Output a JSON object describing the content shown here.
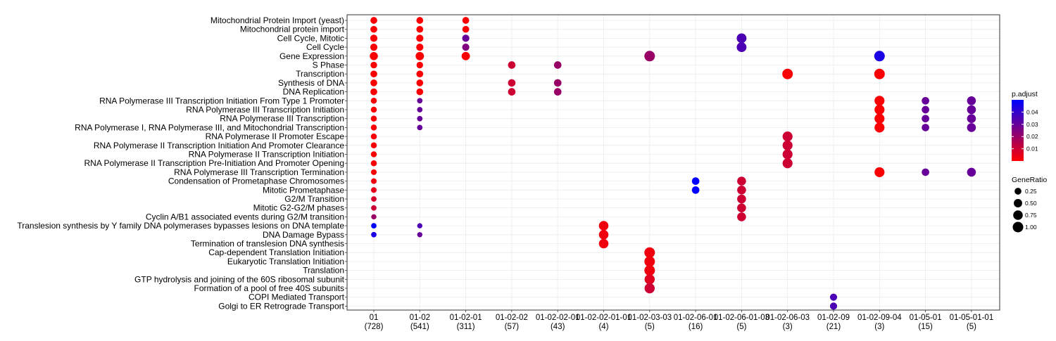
{
  "chart_data": {
    "type": "scatter",
    "title": "",
    "xlabel": "",
    "ylabel": "",
    "grid": true,
    "x_categories": [
      {
        "label": "01",
        "count": "(728)"
      },
      {
        "label": "01-02",
        "count": "(541)"
      },
      {
        "label": "01-02-01",
        "count": "(311)"
      },
      {
        "label": "01-02-02",
        "count": "(57)"
      },
      {
        "label": "01-02-02-01",
        "count": "(43)"
      },
      {
        "label": "01-02-02-01-01",
        "count": "(4)"
      },
      {
        "label": "01-02-03-03",
        "count": "(5)"
      },
      {
        "label": "01-02-06-01",
        "count": "(16)"
      },
      {
        "label": "01-02-06-01-03",
        "count": "(5)"
      },
      {
        "label": "01-02-06-03",
        "count": "(3)"
      },
      {
        "label": "01-02-09",
        "count": "(21)"
      },
      {
        "label": "01-02-09-04",
        "count": "(3)"
      },
      {
        "label": "01-05-01",
        "count": "(15)"
      },
      {
        "label": "01-05-01-01",
        "count": "(5)"
      }
    ],
    "y_categories": [
      "Mitochondrial Protein Import (yeast)",
      "Mitochondrial protein import",
      "Cell Cycle, Mitotic",
      "Cell Cycle",
      "Gene Expression",
      "S Phase",
      "Transcription",
      "Synthesis of DNA",
      "DNA Replication",
      "RNA Polymerase III Transcription Initiation From Type 1 Promoter",
      "RNA Polymerase III Transcription Initiation",
      "RNA Polymerase III Transcription",
      "RNA Polymerase I, RNA Polymerase III, and Mitochondrial Transcription",
      "RNA Polymerase II Promoter Escape",
      "RNA Polymerase II Transcription Initiation And Promoter Clearance",
      "RNA Polymerase II Transcription Initiation",
      "RNA Polymerase II Transcription Pre-Initiation And Promoter Opening",
      "RNA Polymerase III Transcription Termination",
      "Condensation of Prometaphase Chromosomes",
      "Mitotic Prometaphase",
      "G2/M Transition",
      "Mitotic G2-G2/M phases",
      "Cyclin A/B1 associated events during G2/M transition",
      "Translesion synthesis by Y family DNA polymerases bypasses lesions on DNA template",
      "DNA Damage Bypass",
      "Termination of translesion DNA synthesis",
      "Cap-dependent Translation Initiation",
      "Eukaryotic Translation Initiation",
      "Translation",
      "GTP hydrolysis and joining of the 60S ribosomal subunit",
      "Formation of a pool of free 40S subunits",
      "COPI Mediated Transport",
      "Golgi to ER Retrograde Transport"
    ],
    "points": [
      {
        "x": 0,
        "y": 0,
        "ratio": 0.25,
        "padj": 0.001
      },
      {
        "x": 0,
        "y": 1,
        "ratio": 0.25,
        "padj": 0.001
      },
      {
        "x": 0,
        "y": 2,
        "ratio": 0.3,
        "padj": 0.001
      },
      {
        "x": 0,
        "y": 3,
        "ratio": 0.3,
        "padj": 0.001
      },
      {
        "x": 0,
        "y": 4,
        "ratio": 0.45,
        "padj": 0.001
      },
      {
        "x": 0,
        "y": 5,
        "ratio": 0.22,
        "padj": 0.001
      },
      {
        "x": 0,
        "y": 6,
        "ratio": 0.25,
        "padj": 0.001
      },
      {
        "x": 0,
        "y": 7,
        "ratio": 0.25,
        "padj": 0.001
      },
      {
        "x": 0,
        "y": 8,
        "ratio": 0.25,
        "padj": 0.001
      },
      {
        "x": 0,
        "y": 9,
        "ratio": 0.15,
        "padj": 0.001
      },
      {
        "x": 0,
        "y": 10,
        "ratio": 0.15,
        "padj": 0.001
      },
      {
        "x": 0,
        "y": 11,
        "ratio": 0.15,
        "padj": 0.001
      },
      {
        "x": 0,
        "y": 12,
        "ratio": 0.15,
        "padj": 0.001
      },
      {
        "x": 0,
        "y": 13,
        "ratio": 0.15,
        "padj": 0.001
      },
      {
        "x": 0,
        "y": 14,
        "ratio": 0.15,
        "padj": 0.001
      },
      {
        "x": 0,
        "y": 15,
        "ratio": 0.15,
        "padj": 0.001
      },
      {
        "x": 0,
        "y": 16,
        "ratio": 0.15,
        "padj": 0.001
      },
      {
        "x": 0,
        "y": 17,
        "ratio": 0.12,
        "padj": 0.001
      },
      {
        "x": 0,
        "y": 18,
        "ratio": 0.12,
        "padj": 0.003
      },
      {
        "x": 0,
        "y": 19,
        "ratio": 0.12,
        "padj": 0.005
      },
      {
        "x": 0,
        "y": 20,
        "ratio": 0.1,
        "padj": 0.008
      },
      {
        "x": 0,
        "y": 21,
        "ratio": 0.1,
        "padj": 0.01
      },
      {
        "x": 0,
        "y": 22,
        "ratio": 0.08,
        "padj": 0.02
      },
      {
        "x": 0,
        "y": 23,
        "ratio": 0.1,
        "padj": 0.05
      },
      {
        "x": 0,
        "y": 24,
        "ratio": 0.1,
        "padj": 0.045
      },
      {
        "x": 1,
        "y": 0,
        "ratio": 0.25,
        "padj": 0.001
      },
      {
        "x": 1,
        "y": 1,
        "ratio": 0.25,
        "padj": 0.001
      },
      {
        "x": 1,
        "y": 2,
        "ratio": 0.3,
        "padj": 0.001
      },
      {
        "x": 1,
        "y": 3,
        "ratio": 0.3,
        "padj": 0.001
      },
      {
        "x": 1,
        "y": 4,
        "ratio": 0.5,
        "padj": 0.001
      },
      {
        "x": 1,
        "y": 5,
        "ratio": 0.22,
        "padj": 0.001
      },
      {
        "x": 1,
        "y": 6,
        "ratio": 0.25,
        "padj": 0.001
      },
      {
        "x": 1,
        "y": 7,
        "ratio": 0.25,
        "padj": 0.001
      },
      {
        "x": 1,
        "y": 8,
        "ratio": 0.25,
        "padj": 0.001
      },
      {
        "x": 1,
        "y": 9,
        "ratio": 0.1,
        "padj": 0.03
      },
      {
        "x": 1,
        "y": 10,
        "ratio": 0.1,
        "padj": 0.03
      },
      {
        "x": 1,
        "y": 11,
        "ratio": 0.1,
        "padj": 0.03
      },
      {
        "x": 1,
        "y": 12,
        "ratio": 0.1,
        "padj": 0.03
      },
      {
        "x": 1,
        "y": 23,
        "ratio": 0.08,
        "padj": 0.035
      },
      {
        "x": 1,
        "y": 24,
        "ratio": 0.08,
        "padj": 0.03
      },
      {
        "x": 2,
        "y": 0,
        "ratio": 0.25,
        "padj": 0.001
      },
      {
        "x": 2,
        "y": 1,
        "ratio": 0.25,
        "padj": 0.001
      },
      {
        "x": 2,
        "y": 2,
        "ratio": 0.3,
        "padj": 0.03
      },
      {
        "x": 2,
        "y": 3,
        "ratio": 0.3,
        "padj": 0.025
      },
      {
        "x": 2,
        "y": 4,
        "ratio": 0.5,
        "padj": 0.001
      },
      {
        "x": 3,
        "y": 5,
        "ratio": 0.35,
        "padj": 0.01
      },
      {
        "x": 3,
        "y": 7,
        "ratio": 0.35,
        "padj": 0.01
      },
      {
        "x": 3,
        "y": 8,
        "ratio": 0.35,
        "padj": 0.01
      },
      {
        "x": 4,
        "y": 5,
        "ratio": 0.35,
        "padj": 0.02
      },
      {
        "x": 4,
        "y": 7,
        "ratio": 0.35,
        "padj": 0.02
      },
      {
        "x": 4,
        "y": 8,
        "ratio": 0.35,
        "padj": 0.02
      },
      {
        "x": 5,
        "y": 23,
        "ratio": 0.75,
        "padj": 0.003
      },
      {
        "x": 5,
        "y": 24,
        "ratio": 0.75,
        "padj": 0.003
      },
      {
        "x": 5,
        "y": 25,
        "ratio": 0.75,
        "padj": 0.003
      },
      {
        "x": 6,
        "y": 4,
        "ratio": 1.0,
        "padj": 0.02
      },
      {
        "x": 6,
        "y": 26,
        "ratio": 1.0,
        "padj": 0.003
      },
      {
        "x": 6,
        "y": 27,
        "ratio": 1.0,
        "padj": 0.003
      },
      {
        "x": 6,
        "y": 28,
        "ratio": 1.0,
        "padj": 0.003
      },
      {
        "x": 6,
        "y": 29,
        "ratio": 0.9,
        "padj": 0.006
      },
      {
        "x": 6,
        "y": 30,
        "ratio": 0.9,
        "padj": 0.01
      },
      {
        "x": 7,
        "y": 18,
        "ratio": 0.35,
        "padj": 0.05
      },
      {
        "x": 7,
        "y": 19,
        "ratio": 0.35,
        "padj": 0.05
      },
      {
        "x": 8,
        "y": 2,
        "ratio": 0.8,
        "padj": 0.035
      },
      {
        "x": 8,
        "y": 3,
        "ratio": 0.8,
        "padj": 0.035
      },
      {
        "x": 8,
        "y": 18,
        "ratio": 0.6,
        "padj": 0.01
      },
      {
        "x": 8,
        "y": 19,
        "ratio": 0.6,
        "padj": 0.01
      },
      {
        "x": 8,
        "y": 20,
        "ratio": 0.6,
        "padj": 0.01
      },
      {
        "x": 8,
        "y": 21,
        "ratio": 0.6,
        "padj": 0.01
      },
      {
        "x": 8,
        "y": 22,
        "ratio": 0.6,
        "padj": 0.01
      },
      {
        "x": 9,
        "y": 6,
        "ratio": 1.0,
        "padj": 0.001
      },
      {
        "x": 9,
        "y": 13,
        "ratio": 0.85,
        "padj": 0.01
      },
      {
        "x": 9,
        "y": 14,
        "ratio": 0.85,
        "padj": 0.01
      },
      {
        "x": 9,
        "y": 15,
        "ratio": 0.85,
        "padj": 0.01
      },
      {
        "x": 9,
        "y": 16,
        "ratio": 0.85,
        "padj": 0.01
      },
      {
        "x": 10,
        "y": 31,
        "ratio": 0.3,
        "padj": 0.035
      },
      {
        "x": 10,
        "y": 32,
        "ratio": 0.3,
        "padj": 0.035
      },
      {
        "x": 11,
        "y": 4,
        "ratio": 1.0,
        "padj": 0.045
      },
      {
        "x": 11,
        "y": 6,
        "ratio": 1.0,
        "padj": 0.001
      },
      {
        "x": 11,
        "y": 9,
        "ratio": 0.85,
        "padj": 0.001
      },
      {
        "x": 11,
        "y": 10,
        "ratio": 0.85,
        "padj": 0.001
      },
      {
        "x": 11,
        "y": 11,
        "ratio": 0.85,
        "padj": 0.001
      },
      {
        "x": 11,
        "y": 12,
        "ratio": 0.85,
        "padj": 0.001
      },
      {
        "x": 11,
        "y": 17,
        "ratio": 0.85,
        "padj": 0.001
      },
      {
        "x": 12,
        "y": 9,
        "ratio": 0.35,
        "padj": 0.03
      },
      {
        "x": 12,
        "y": 10,
        "ratio": 0.35,
        "padj": 0.03
      },
      {
        "x": 12,
        "y": 11,
        "ratio": 0.35,
        "padj": 0.03
      },
      {
        "x": 12,
        "y": 12,
        "ratio": 0.35,
        "padj": 0.03
      },
      {
        "x": 12,
        "y": 17,
        "ratio": 0.35,
        "padj": 0.03
      },
      {
        "x": 13,
        "y": 9,
        "ratio": 0.6,
        "padj": 0.03
      },
      {
        "x": 13,
        "y": 10,
        "ratio": 0.6,
        "padj": 0.03
      },
      {
        "x": 13,
        "y": 11,
        "ratio": 0.6,
        "padj": 0.03
      },
      {
        "x": 13,
        "y": 12,
        "ratio": 0.6,
        "padj": 0.03
      },
      {
        "x": 13,
        "y": 17,
        "ratio": 0.6,
        "padj": 0.03
      }
    ],
    "legend_color": {
      "title": "p.adjust",
      "ticks": [
        0.01,
        0.02,
        0.03,
        0.04
      ],
      "tick_labels": [
        "0.01",
        "0.02",
        "0.03",
        "0.04"
      ],
      "range": [
        0.0,
        0.05
      ],
      "low_color": "#ff0000",
      "high_color": "#0000ff",
      "placement": "right"
    },
    "legend_size": {
      "title": "GeneRatio",
      "values": [
        0.25,
        0.5,
        0.75,
        1.0
      ],
      "labels": [
        "0.25",
        "0.50",
        "0.75",
        "1.00"
      ],
      "placement": "right"
    }
  }
}
